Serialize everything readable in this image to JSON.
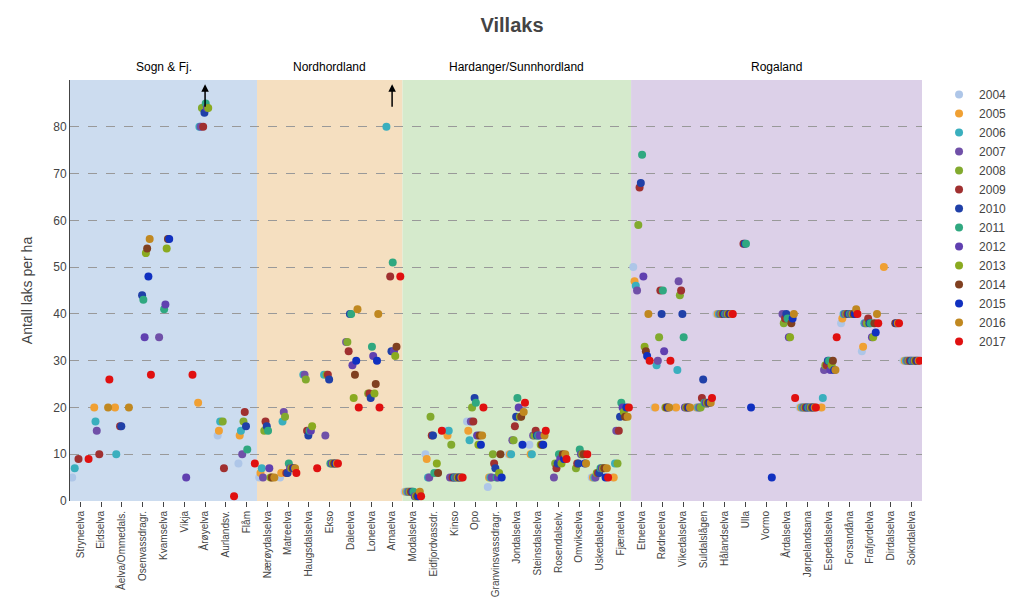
{
  "chart_data": {
    "type": "scatter",
    "title": "Villaks",
    "ylabel": "Antall laks per ha",
    "marker": "circle",
    "grid": true,
    "legend": "right",
    "ylim": [
      0,
      90
    ],
    "yticks": [
      0,
      10,
      20,
      30,
      40,
      50,
      60,
      70,
      80
    ],
    "categories": [
      "Stryneelva",
      "Eidselva",
      "Åelva/Ommedals.",
      "Osenvassdragr.",
      "Kvamselva",
      "Vikja",
      "Årøyelva",
      "Aurlandsv.",
      "Flåm",
      "Nærøydalselva",
      "Matreelva",
      "Haugsdalselva",
      "Ekso",
      "Daleelva",
      "Loneelva",
      "Arnaelva",
      "Modalselva",
      "Eidfjordvassdr.",
      "Kinso",
      "Opo",
      "Granvinsvassdragr.",
      "Jondalselva",
      "Steinsdalselva",
      "Rosendalselv.",
      "Omvikselva",
      "Uskedalselva",
      "Fjæraelva",
      "Etneelva",
      "Rødneelva",
      "Vikedalselva",
      "Suldalslågen",
      "Hålandselva",
      "Ulla",
      "Vormo",
      "Årdalselva",
      "Jørpelandsana",
      "Espedalselva",
      "Forsandåna",
      "Frafjordelva",
      "Dirdalselva",
      "Sokndalelva"
    ],
    "regions": [
      {
        "name": "Sogn & Fj.",
        "color": "#ccdcef",
        "from": "Stryneelva",
        "to": "Flåm"
      },
      {
        "name": "Nordhordland",
        "color": "#f5dfc0",
        "from": "Nærøydalselva",
        "to": "Arnaelva"
      },
      {
        "name": "Hardanger/Sunnhordland",
        "color": "#d5eacc",
        "from": "Modalselva",
        "to": "Fjæraelva"
      },
      {
        "name": "Rogaland",
        "color": "#dcd0e8",
        "from": "Etneelva",
        "to": "Sokndalelva"
      }
    ],
    "annotations": [
      {
        "category": "Årøyelva",
        "marker": "arrow"
      },
      {
        "category": "Arnaelva",
        "marker": "arrow"
      }
    ],
    "series": [
      {
        "name": "2004",
        "color": "#aec6e8",
        "values": [
          5,
          null,
          null,
          null,
          null,
          null,
          null,
          14,
          8,
          5,
          5,
          null,
          null,
          null,
          null,
          null,
          2,
          10,
          15,
          17,
          3,
          10,
          12,
          null,
          null,
          5,
          5,
          50,
          20,
          20,
          20,
          40,
          null,
          null,
          null,
          20,
          20,
          38,
          32,
          null,
          30
        ]
      },
      {
        "name": "2005",
        "color": "#f0a033",
        "values": [
          null,
          20,
          20,
          null,
          null,
          null,
          21,
          15,
          14,
          6,
          6,
          null,
          null,
          null,
          null,
          null,
          2,
          9,
          14,
          15,
          5,
          10,
          10,
          null,
          null,
          5,
          5,
          47,
          20,
          20,
          20,
          40,
          null,
          null,
          null,
          20,
          20,
          39,
          33,
          50,
          30
        ]
      },
      {
        "name": "2006",
        "color": "#3aafbe",
        "values": [
          7,
          17,
          10,
          null,
          null,
          null,
          80,
          17,
          15,
          7,
          17,
          27,
          27,
          null,
          null,
          80,
          2,
          5,
          15,
          13,
          5,
          10,
          10,
          null,
          null,
          5,
          8,
          46,
          29,
          28,
          20,
          40,
          null,
          null,
          null,
          20,
          22,
          40,
          38,
          null,
          30
        ]
      },
      {
        "name": "2007",
        "color": "#7050a8",
        "values": [
          null,
          15,
          null,
          null,
          35,
          null,
          80,
          null,
          10,
          5,
          19,
          27,
          14,
          34,
          null,
          null,
          2,
          5,
          5,
          17,
          5,
          13,
          14,
          5,
          null,
          5,
          15,
          45,
          30,
          47,
          20,
          40,
          null,
          null,
          40,
          20,
          28,
          40,
          38,
          null,
          30
        ]
      },
      {
        "name": "2008",
        "color": "#82aa2e",
        "values": [
          null,
          null,
          null,
          null,
          null,
          null,
          84,
          17,
          17,
          15,
          18,
          26,
          27,
          34,
          23,
          null,
          2,
          18,
          12,
          20,
          10,
          13,
          14,
          8,
          7,
          6,
          8,
          59,
          35,
          44,
          20,
          40,
          null,
          null,
          38,
          20,
          29,
          40,
          38,
          null,
          30
        ]
      },
      {
        "name": "2009",
        "color": "#a03030",
        "values": [
          9,
          10,
          16,
          null,
          null,
          null,
          80,
          7,
          19,
          17,
          6,
          15,
          27,
          32,
          23,
          48,
          2,
          14,
          5,
          17,
          8,
          16,
          15,
          7,
          8,
          6,
          15,
          67,
          45,
          45,
          22,
          40,
          55,
          null,
          39,
          20,
          29,
          40,
          39,
          null,
          30
        ]
      },
      {
        "name": "2010",
        "color": "#2040a8",
        "values": [
          null,
          null,
          16,
          44,
          null,
          null,
          83,
          null,
          16,
          16,
          6,
          14,
          26,
          40,
          22,
          32,
          2,
          14,
          5,
          22,
          7,
          18,
          14,
          8,
          8,
          6,
          18,
          68,
          40,
          40,
          26,
          40,
          55,
          null,
          40,
          20,
          30,
          40,
          38,
          null,
          30
        ]
      },
      {
        "name": "2011",
        "color": "#30a880",
        "values": [
          null,
          null,
          null,
          43,
          41,
          null,
          85,
          null,
          11,
          15,
          8,
          15,
          8,
          40,
          33,
          51,
          2,
          6,
          5,
          21,
          5,
          22,
          14,
          10,
          11,
          7,
          21,
          74,
          45,
          35,
          21,
          40,
          55,
          null,
          39,
          20,
          30,
          40,
          38,
          null,
          30
        ]
      },
      {
        "name": "2012",
        "color": "#6040b0",
        "values": [
          null,
          null,
          null,
          35,
          42,
          5,
          84,
          null,
          null,
          7,
          7,
          15,
          8,
          29,
          31,
          32,
          1,
          null,
          5,
          14,
          5,
          20,
          14,
          9,
          10,
          7,
          20,
          48,
          32,
          20,
          21,
          40,
          null,
          null,
          35,
          20,
          28,
          40,
          35,
          null,
          30
        ]
      },
      {
        "name": "2013",
        "color": "#8aaa20",
        "values": [
          null,
          null,
          null,
          53,
          54,
          null,
          84,
          null,
          null,
          5,
          7,
          16,
          8,
          22,
          23,
          31,
          1,
          8,
          5,
          12,
          6,
          18,
          12,
          8,
          10,
          7,
          19,
          33,
          20,
          20,
          21,
          40,
          null,
          null,
          35,
          20,
          29,
          40,
          35,
          null,
          30
        ]
      },
      {
        "name": "2014",
        "color": "#804020",
        "values": [
          null,
          null,
          null,
          54,
          56,
          null,
          null,
          null,
          null,
          5,
          7,
          null,
          8,
          27,
          25,
          33,
          1,
          6,
          5,
          14,
          10,
          18,
          12,
          10,
          10,
          7,
          18,
          32,
          20,
          20,
          21,
          40,
          null,
          null,
          38,
          20,
          30,
          40,
          38,
          38,
          30
        ]
      },
      {
        "name": "2015",
        "color": "#1030c0",
        "values": [
          null,
          null,
          null,
          48,
          56,
          null,
          null,
          null,
          null,
          null,
          7,
          null,
          8,
          30,
          30,
          null,
          1,
          null,
          5,
          12,
          5,
          12,
          12,
          9,
          8,
          5,
          20,
          31,
          20,
          20,
          21,
          40,
          20,
          5,
          39,
          20,
          28,
          40,
          36,
          38,
          30
        ]
      },
      {
        "name": "2016",
        "color": "#c08820",
        "values": [
          null,
          20,
          20,
          56,
          null,
          null,
          null,
          null,
          null,
          5,
          7,
          null,
          8,
          41,
          40,
          null,
          2,
          null,
          5,
          14,
          null,
          19,
          14,
          10,
          8,
          7,
          18,
          40,
          20,
          20,
          21,
          40,
          null,
          null,
          40,
          20,
          28,
          41,
          40,
          38,
          30
        ]
      },
      {
        "name": "2017",
        "color": "#e01010",
        "values": [
          9,
          26,
          null,
          27,
          null,
          27,
          null,
          1,
          8,
          null,
          6,
          7,
          8,
          20,
          20,
          48,
          1,
          15,
          5,
          20,
          null,
          21,
          15,
          9,
          10,
          5,
          20,
          30,
          30,
          null,
          22,
          40,
          null,
          null,
          22,
          20,
          35,
          40,
          38,
          38,
          30
        ]
      }
    ]
  }
}
